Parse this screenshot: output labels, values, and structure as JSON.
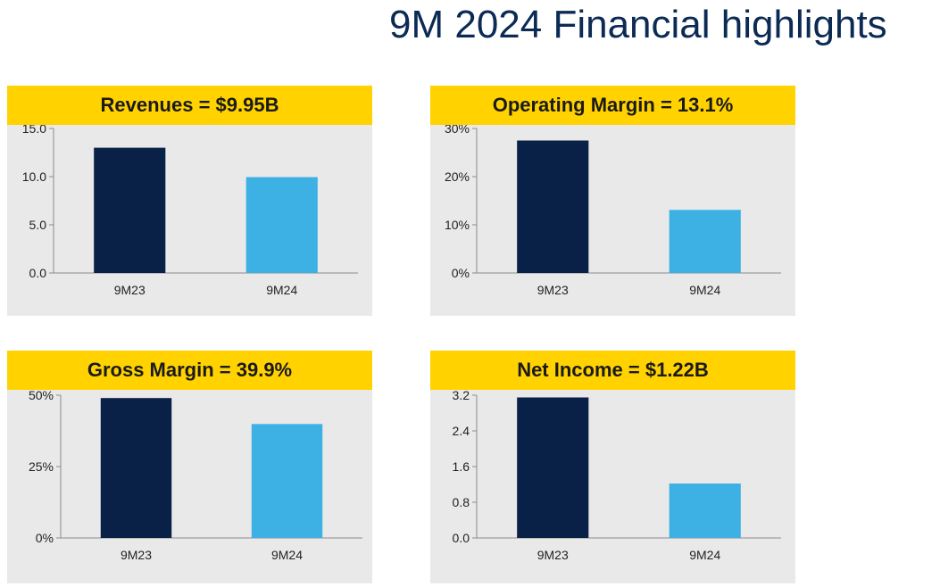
{
  "page": {
    "title": "9M 2024 Financial highlights"
  },
  "colors": {
    "header_bg": "#FFD200",
    "panel_bg": "#E9E9E9",
    "bar_prior": "#0A2147",
    "bar_current": "#3DB1E4",
    "title_color": "#0B2A54"
  },
  "chart_data": [
    {
      "type": "bar",
      "title": "Revenues = $9.95B",
      "categories": [
        "9M23",
        "9M24"
      ],
      "values": [
        13.0,
        9.95
      ],
      "ylim": [
        0,
        15
      ],
      "ticks": [
        0,
        5,
        10,
        15
      ],
      "tick_labels": [
        "0.0",
        "5.0",
        "10.0",
        "15.0"
      ],
      "xlabel": "",
      "ylabel": ""
    },
    {
      "type": "bar",
      "title": "Operating Margin = 13.1%",
      "categories": [
        "9M23",
        "9M24"
      ],
      "values": [
        27.5,
        13.1
      ],
      "ylim": [
        0,
        30
      ],
      "ticks": [
        0,
        10,
        20,
        30
      ],
      "tick_labels": [
        "0%",
        "10%",
        "20%",
        "30%"
      ],
      "xlabel": "",
      "ylabel": ""
    },
    {
      "type": "bar",
      "title": "Gross Margin = 39.9%",
      "categories": [
        "9M23",
        "9M24"
      ],
      "values": [
        49.0,
        39.9
      ],
      "ylim": [
        0,
        50
      ],
      "ticks": [
        0,
        25,
        50
      ],
      "tick_labels": [
        "0%",
        "25%",
        "50%"
      ],
      "xlabel": "",
      "ylabel": ""
    },
    {
      "type": "bar",
      "title": "Net Income = $1.22B",
      "categories": [
        "9M23",
        "9M24"
      ],
      "values": [
        3.15,
        1.22
      ],
      "ylim": [
        0,
        3.2
      ],
      "ticks": [
        0,
        0.8,
        1.6,
        2.4,
        3.2
      ],
      "tick_labels": [
        "0.0",
        "0.8",
        "1.6",
        "2.4",
        "3.2"
      ],
      "xlabel": "",
      "ylabel": ""
    }
  ]
}
